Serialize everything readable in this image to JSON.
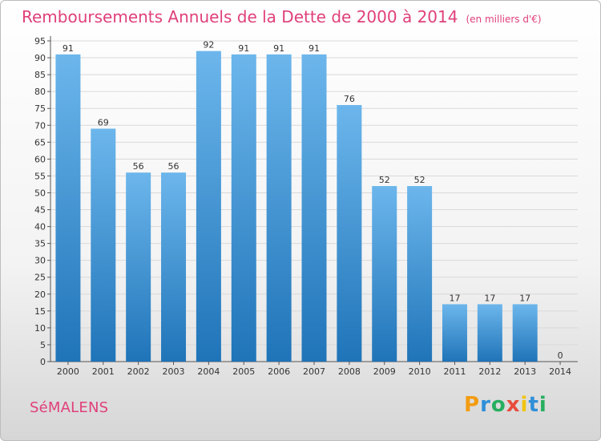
{
  "header": {
    "title": "Remboursements Annuels de la Dette de 2000 à 2014",
    "unit": "(en milliers d'€)"
  },
  "footer": {
    "commune": "SéMALENS",
    "brand": "Proxiti"
  },
  "colors": {
    "accent": "#e0407a",
    "bar_top": "#6cb6ec",
    "bar_bottom": "#1f74b8",
    "brand_letters": [
      "#f39c12",
      "#2f8fd8",
      "#27ae60",
      "#e74c3c",
      "#f1c40f",
      "#2f8fd8",
      "#27ae60"
    ]
  },
  "chart_data": {
    "type": "bar",
    "categories": [
      "2000",
      "2001",
      "2002",
      "2003",
      "2004",
      "2005",
      "2006",
      "2007",
      "2008",
      "2009",
      "2010",
      "2011",
      "2012",
      "2013",
      "2014"
    ],
    "values": [
      91,
      69,
      56,
      56,
      92,
      91,
      91,
      91,
      76,
      52,
      52,
      17,
      17,
      17,
      0
    ],
    "data_labels": [
      "91",
      "69",
      "56",
      "56",
      "92",
      "91",
      "91",
      "91",
      "76",
      "52",
      "52",
      "17",
      "17",
      "17",
      "0"
    ],
    "y_ticks": [
      "0",
      "5",
      "10",
      "15",
      "20",
      "25",
      "30",
      "35",
      "40",
      "45",
      "50",
      "55",
      "60",
      "65",
      "70",
      "75",
      "80",
      "85",
      "90",
      "95"
    ],
    "ylim": [
      0,
      95
    ],
    "grid": true
  }
}
